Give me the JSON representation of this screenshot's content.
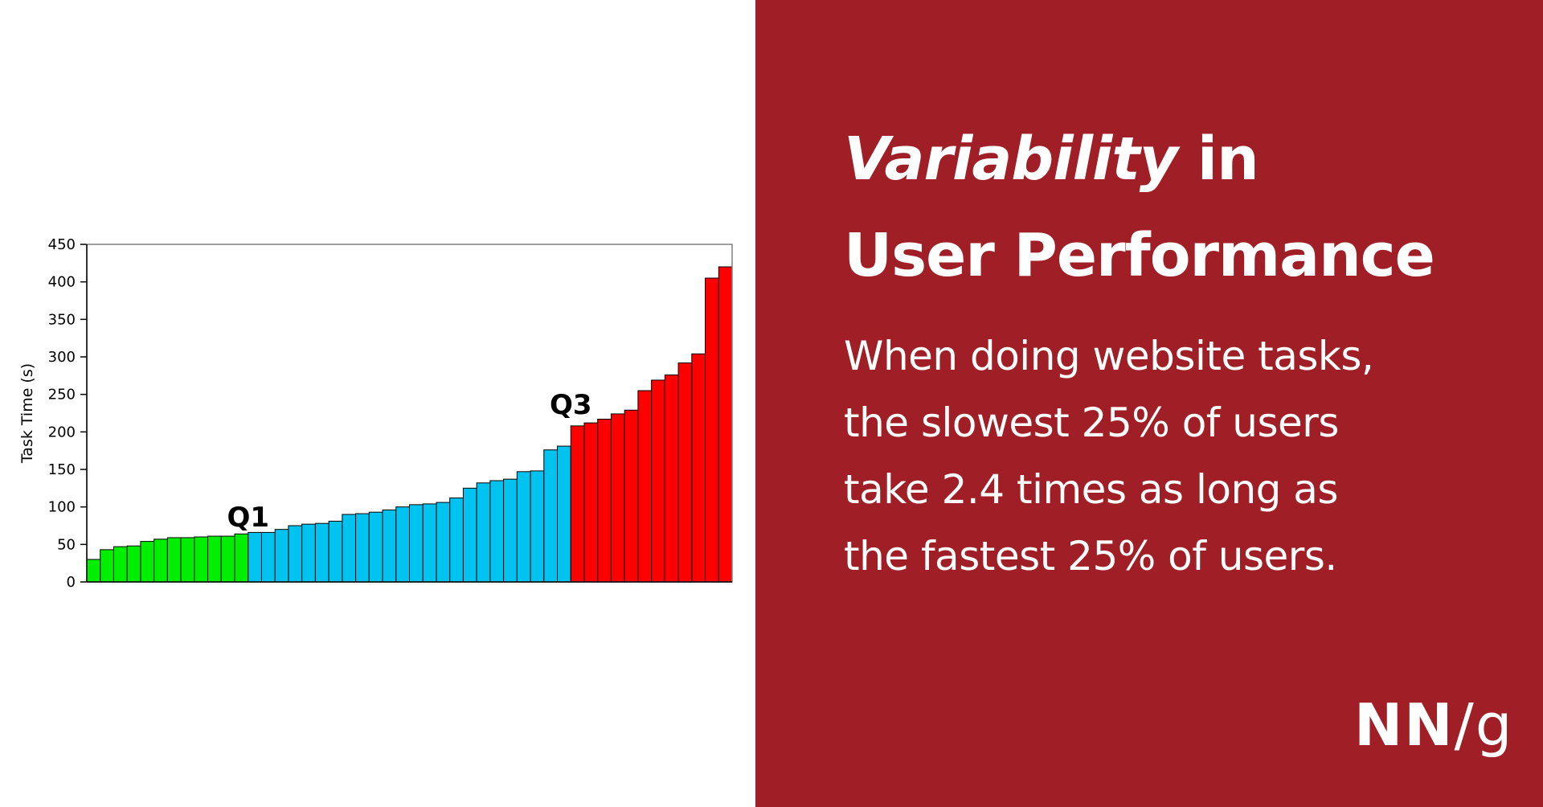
{
  "colors": {
    "panel_background": "#a01f27",
    "text": "#ffffff",
    "q1_bar": "#00ee00",
    "middle_bar": "#00c4ef",
    "q4_bar": "#ff0000",
    "bar_outline": "#000000",
    "chart_background": "#ffffff"
  },
  "headline": {
    "emphasis": "Variability",
    "rest": " in",
    "line2": "User Performance"
  },
  "description": {
    "lines": [
      "When doing website tasks,",
      "the slowest 25% of users",
      "take 2.4 times as long as",
      "the fastest 25% of users."
    ]
  },
  "logo": {
    "nn": "NN",
    "slash": "/",
    "g": "g"
  },
  "chart_data": {
    "type": "bar",
    "ylabel": "Task Time (s)",
    "xlabel": "",
    "ylim": [
      0,
      450
    ],
    "yticks": [
      0,
      50,
      100,
      150,
      200,
      250,
      300,
      350,
      400,
      450
    ],
    "grid": false,
    "values": [
      30,
      43,
      47,
      48,
      54,
      57,
      59,
      59,
      60,
      61,
      61,
      64,
      66,
      66,
      70,
      75,
      77,
      78,
      81,
      90,
      91,
      93,
      96,
      100,
      103,
      104,
      106,
      112,
      125,
      132,
      135,
      137,
      147,
      148,
      176,
      181,
      208,
      212,
      217,
      224,
      229,
      255,
      269,
      276,
      292,
      304,
      405,
      420
    ],
    "groups": [
      {
        "label": "Q1",
        "start": 0,
        "end": 11,
        "color": "#00ee00"
      },
      {
        "label": "",
        "start": 12,
        "end": 35,
        "color": "#00c4ef"
      },
      {
        "label": "",
        "start": 36,
        "end": 47,
        "color": "#ff0000"
      }
    ],
    "annotations": [
      {
        "text": "Q1",
        "x_after_bar": 11,
        "y": 87
      },
      {
        "text": "Q3",
        "x_after_bar": 35,
        "y": 237
      }
    ]
  }
}
